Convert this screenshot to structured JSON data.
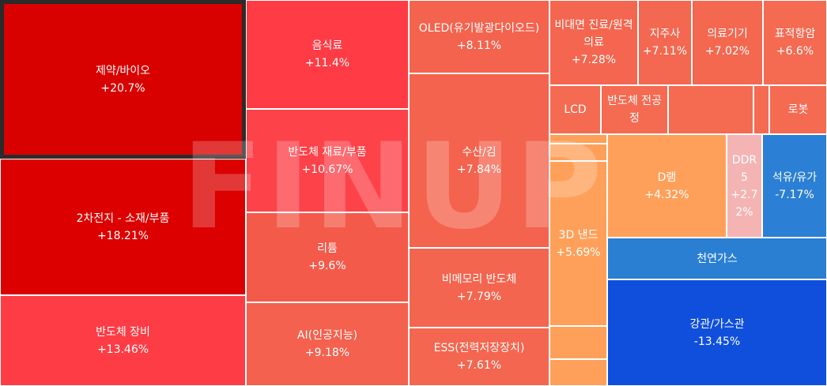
{
  "watermark": "FINUP",
  "tiles": [
    {
      "name": "제약/바이오",
      "change": "+20.7%"
    },
    {
      "name": "2차전지 - 소재/부품",
      "change": "+18.21%"
    },
    {
      "name": "반도체 장비",
      "change": "+13.46%"
    },
    {
      "name": "음식료",
      "change": "+11.4%"
    },
    {
      "name": "반도체 재료/부품",
      "change": "+10.67%"
    },
    {
      "name": "리튬",
      "change": "+9.6%"
    },
    {
      "name": "AI(인공지능)",
      "change": "+9.18%"
    },
    {
      "name": "OLED(유기발광다이오드)",
      "change": "+8.11%"
    },
    {
      "name": "수산/김",
      "change": "+7.84%"
    },
    {
      "name": "비메모리 반도체",
      "change": "+7.79%"
    },
    {
      "name": "ESS(전력저장장치)",
      "change": "+7.61%"
    },
    {
      "name": "비대면 진료/원격의료",
      "change": "+7.28%"
    },
    {
      "name": "지주사",
      "change": "+7.11%"
    },
    {
      "name": "의료기기",
      "change": "+7.02%"
    },
    {
      "name": "표적항암",
      "change": "+6.6%"
    },
    {
      "name": "LCD"
    },
    {
      "name": "반도체 전공정"
    },
    {
      "name": "로봇"
    },
    {
      "name": "3D 낸드",
      "change": "+5.69%"
    },
    {
      "name": "D램",
      "change": "+4.32%"
    },
    {
      "name": "DDR5",
      "change": "+2.72%"
    },
    {
      "name": "석유/유가",
      "change": "-7.17%"
    },
    {
      "name": "천연가스"
    },
    {
      "name": "강관/가스관",
      "change": "-13.45%"
    }
  ]
}
